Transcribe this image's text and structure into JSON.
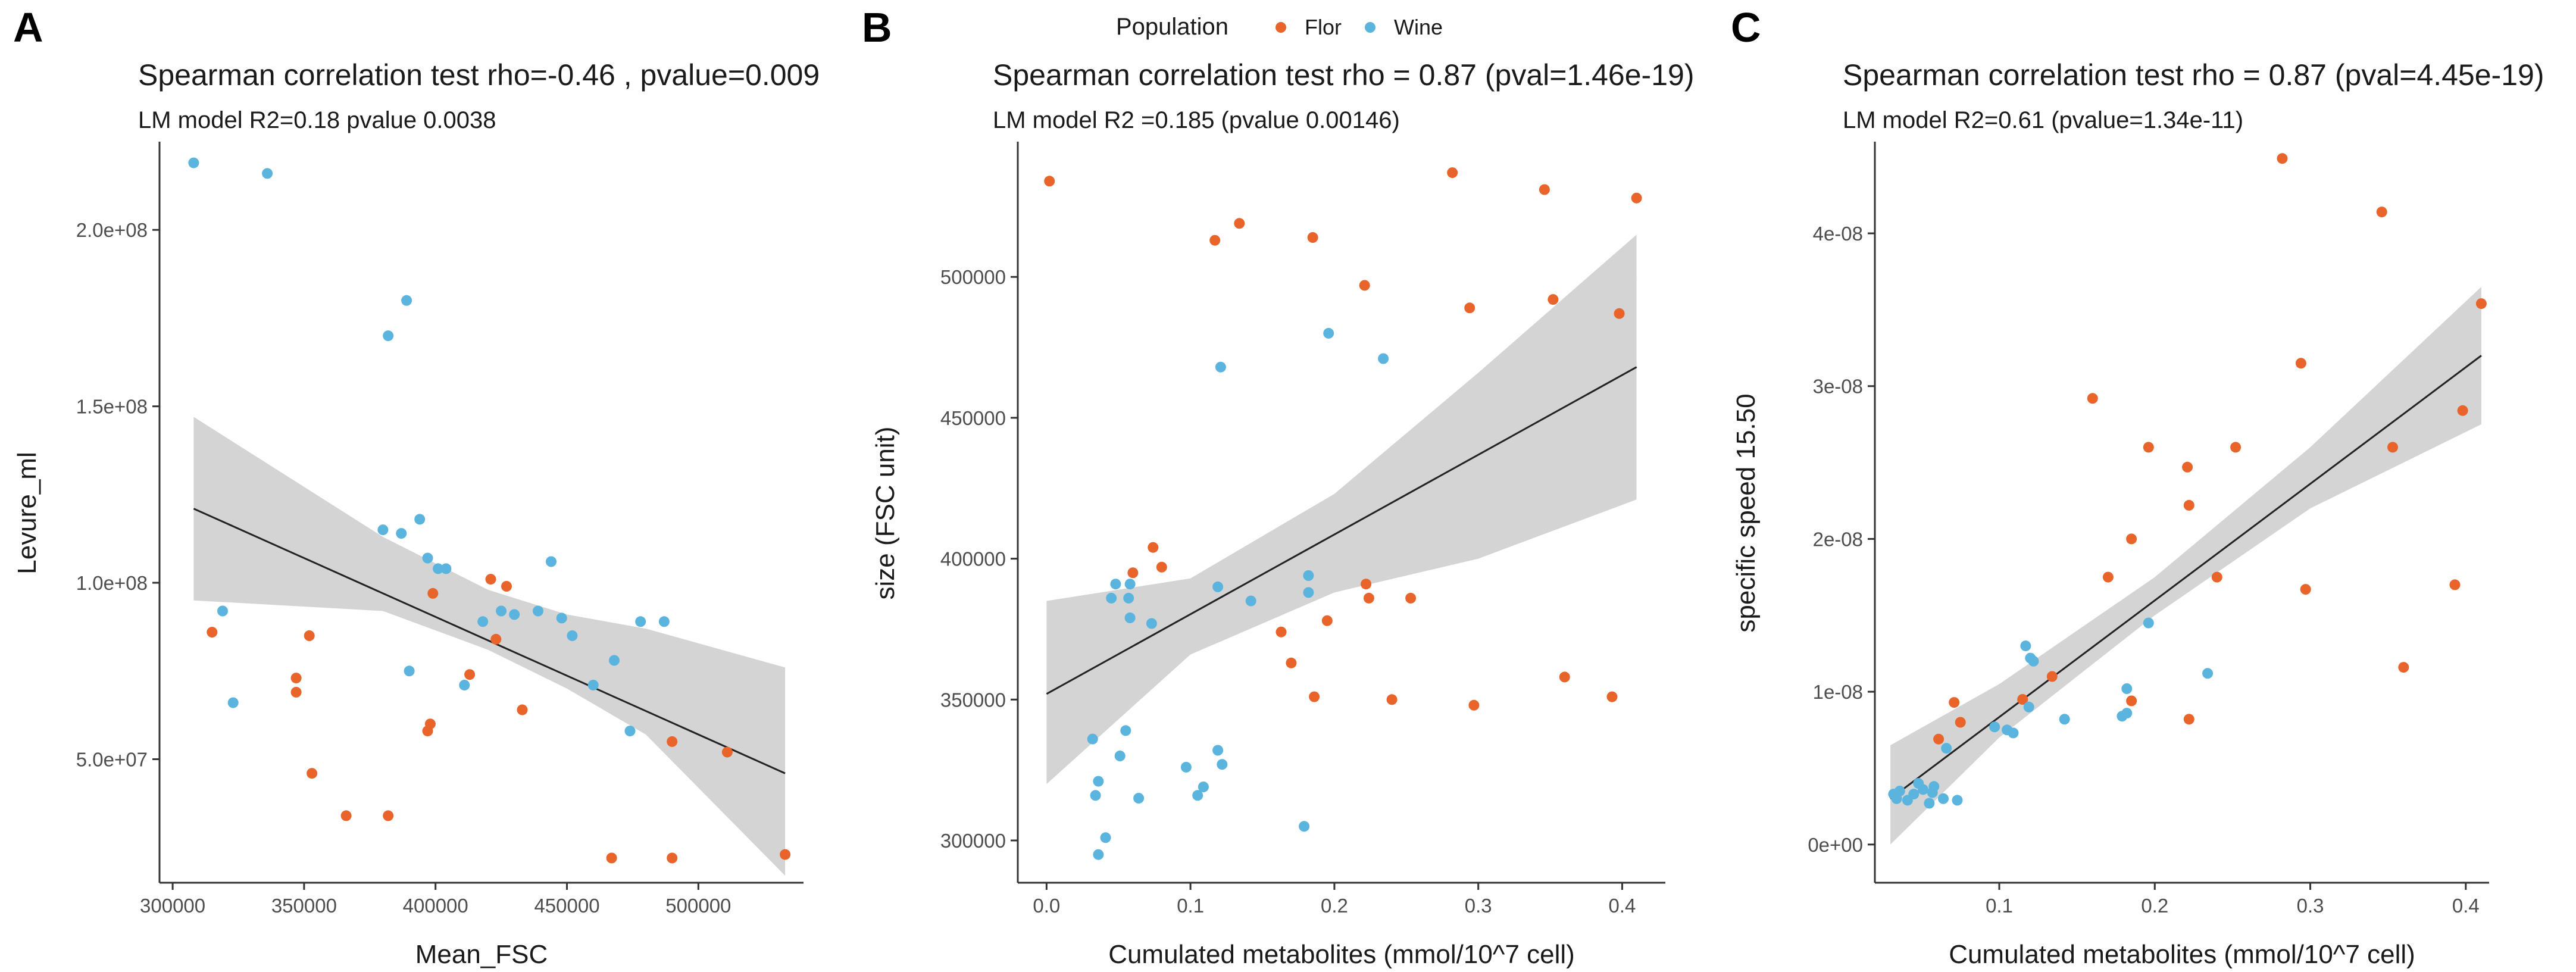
{
  "legend": {
    "title": "Population",
    "items": [
      {
        "label": "Flor",
        "color": "#E8642A"
      },
      {
        "label": "Wine",
        "color": "#5BB4DE"
      }
    ]
  },
  "chart_data": [
    {
      "type": "scatter",
      "panel": "A",
      "title": "Spearman correlation test rho=-0.46 , pvalue=0.009",
      "subtitle": "LM model R2=0.18 pvalue 0.0038",
      "xlabel": "Mean_FSC",
      "ylabel": "Levure_ml",
      "xlim": [
        295000,
        540000
      ],
      "ylim": [
        15000000,
        225000000
      ],
      "xticks": [
        300000,
        350000,
        400000,
        450000,
        500000
      ],
      "xtick_labels": [
        "300000",
        "350000",
        "400000",
        "450000",
        "500000"
      ],
      "yticks": [
        50000000,
        100000000,
        150000000,
        200000000
      ],
      "ytick_labels": [
        "5.0e+07",
        "1.0e+08",
        "1.5e+08",
        "2.0e+08"
      ],
      "fit": {
        "x": [
          308000,
          533000
        ],
        "y": [
          121000000,
          46000000
        ]
      },
      "band": {
        "x": [
          308000,
          380000,
          420000,
          450000,
          480000,
          533000
        ],
        "lower": [
          95000000,
          92000000,
          81000000,
          70000000,
          57000000,
          17000000
        ],
        "upper": [
          147000000,
          113000000,
          98000000,
          91000000,
          87000000,
          76000000
        ]
      },
      "series": [
        {
          "name": "Flor",
          "color": "#E8642A",
          "points": [
            [
              315000,
              86000000
            ],
            [
              347000,
              73000000
            ],
            [
              347000,
              69000000
            ],
            [
              352000,
              85000000
            ],
            [
              353000,
              46000000
            ],
            [
              366000,
              34000000
            ],
            [
              382000,
              34000000
            ],
            [
              397000,
              58000000
            ],
            [
              398000,
              60000000
            ],
            [
              399000,
              97000000
            ],
            [
              413000,
              74000000
            ],
            [
              421000,
              101000000
            ],
            [
              423000,
              84000000
            ],
            [
              427000,
              99000000
            ],
            [
              433000,
              64000000
            ],
            [
              467000,
              22000000
            ],
            [
              490000,
              55000000
            ],
            [
              490000,
              22000000
            ],
            [
              511000,
              52000000
            ],
            [
              533000,
              23000000
            ]
          ]
        },
        {
          "name": "Wine",
          "color": "#5BB4DE",
          "points": [
            [
              308000,
              219000000
            ],
            [
              319000,
              92000000
            ],
            [
              323000,
              66000000
            ],
            [
              336000,
              216000000
            ],
            [
              380000,
              115000000
            ],
            [
              382000,
              170000000
            ],
            [
              387000,
              114000000
            ],
            [
              389000,
              180000000
            ],
            [
              390000,
              75000000
            ],
            [
              394000,
              118000000
            ],
            [
              397000,
              107000000
            ],
            [
              401000,
              104000000
            ],
            [
              404000,
              104000000
            ],
            [
              411000,
              71000000
            ],
            [
              418000,
              89000000
            ],
            [
              425000,
              92000000
            ],
            [
              430000,
              91000000
            ],
            [
              439000,
              92000000
            ],
            [
              444000,
              106000000
            ],
            [
              448000,
              90000000
            ],
            [
              452000,
              85000000
            ],
            [
              460000,
              71000000
            ],
            [
              468000,
              78000000
            ],
            [
              474000,
              58000000
            ],
            [
              478000,
              89000000
            ],
            [
              487000,
              89000000
            ]
          ]
        }
      ]
    },
    {
      "type": "scatter",
      "panel": "B",
      "title": "Spearman correlation test rho = 0.87  (pval=1.46e-19)",
      "subtitle": "LM model R2 =0.185   (pvalue 0.00146)",
      "xlabel": "Cumulated metabolites (mmol/10^7 cell)",
      "ylabel": "size (FSC unit)",
      "xlim": [
        -0.02,
        0.43
      ],
      "ylim": [
        285000,
        548000
      ],
      "xticks": [
        0.0,
        0.1,
        0.2,
        0.3,
        0.4
      ],
      "xtick_labels": [
        "0.0",
        "0.1",
        "0.2",
        "0.3",
        "0.4"
      ],
      "yticks": [
        300000,
        350000,
        400000,
        450000,
        500000
      ],
      "ytick_labels": [
        "300000",
        "350000",
        "400000",
        "450000",
        "500000"
      ],
      "fit": {
        "x": [
          0.0,
          0.41
        ],
        "y": [
          352000,
          468000
        ]
      },
      "band": {
        "x": [
          0.0,
          0.1,
          0.2,
          0.3,
          0.41
        ],
        "lower": [
          320000,
          366000,
          388000,
          400000,
          421000
        ],
        "upper": [
          385000,
          393000,
          423000,
          466000,
          515000
        ]
      },
      "series": [
        {
          "name": "Flor",
          "color": "#E8642A",
          "points": [
            [
              0.002,
              534000
            ],
            [
              0.06,
              395000
            ],
            [
              0.074,
              404000
            ],
            [
              0.08,
              397000
            ],
            [
              0.117,
              513000
            ],
            [
              0.134,
              519000
            ],
            [
              0.163,
              374000
            ],
            [
              0.17,
              363000
            ],
            [
              0.185,
              514000
            ],
            [
              0.186,
              351000
            ],
            [
              0.195,
              378000
            ],
            [
              0.221,
              497000
            ],
            [
              0.222,
              391000
            ],
            [
              0.224,
              386000
            ],
            [
              0.24,
              350000
            ],
            [
              0.253,
              386000
            ],
            [
              0.282,
              537000
            ],
            [
              0.294,
              489000
            ],
            [
              0.297,
              348000
            ],
            [
              0.346,
              531000
            ],
            [
              0.352,
              492000
            ],
            [
              0.36,
              358000
            ],
            [
              0.393,
              351000
            ],
            [
              0.398,
              487000
            ],
            [
              0.41,
              528000
            ]
          ]
        },
        {
          "name": "Wine",
          "color": "#5BB4DE",
          "points": [
            [
              0.032,
              336000
            ],
            [
              0.034,
              316000
            ],
            [
              0.036,
              321000
            ],
            [
              0.036,
              295000
            ],
            [
              0.041,
              301000
            ],
            [
              0.045,
              386000
            ],
            [
              0.048,
              391000
            ],
            [
              0.051,
              330000
            ],
            [
              0.055,
              339000
            ],
            [
              0.057,
              386000
            ],
            [
              0.058,
              379000
            ],
            [
              0.058,
              391000
            ],
            [
              0.064,
              315000
            ],
            [
              0.073,
              377000
            ],
            [
              0.097,
              326000
            ],
            [
              0.105,
              316000
            ],
            [
              0.109,
              319000
            ],
            [
              0.119,
              332000
            ],
            [
              0.119,
              390000
            ],
            [
              0.121,
              468000
            ],
            [
              0.122,
              327000
            ],
            [
              0.142,
              385000
            ],
            [
              0.179,
              305000
            ],
            [
              0.182,
              388000
            ],
            [
              0.182,
              394000
            ],
            [
              0.196,
              480000
            ],
            [
              0.234,
              471000
            ]
          ]
        }
      ]
    },
    {
      "type": "scatter",
      "panel": "C",
      "title": "Spearman correlation test rho = 0.87  (pval=4.45e-19)",
      "subtitle": "LM model R2=0.61 (pvalue=1.34e-11)",
      "xlabel": "Cumulated metabolites (mmol/10^7 cell)",
      "ylabel": "specific speed 15.50",
      "xlim": [
        0.02,
        0.415
      ],
      "ylim": [
        -2.5e-09,
        4.6e-08
      ],
      "xticks": [
        0.1,
        0.2,
        0.3,
        0.4
      ],
      "xtick_labels": [
        "0.1",
        "0.2",
        "0.3",
        "0.4"
      ],
      "yticks": [
        0,
        1e-08,
        2e-08,
        3e-08,
        4e-08
      ],
      "ytick_labels": [
        "0e+00",
        "1e-08",
        "2e-08",
        "3e-08",
        "4e-08"
      ],
      "fit": {
        "x": [
          0.03,
          0.41
        ],
        "y": [
          3e-09,
          3.2e-08
        ]
      },
      "band": {
        "x": [
          0.03,
          0.1,
          0.2,
          0.3,
          0.41
        ],
        "lower": [
          0.0,
          7e-09,
          1.5e-08,
          2.2e-08,
          2.75e-08
        ],
        "upper": [
          6.5e-09,
          1.05e-08,
          1.75e-08,
          2.6e-08,
          3.65e-08
        ]
      },
      "series": [
        {
          "name": "Flor",
          "color": "#E8642A",
          "points": [
            [
              0.061,
              6.9e-09
            ],
            [
              0.071,
              9.3e-09
            ],
            [
              0.075,
              8e-09
            ],
            [
              0.115,
              9.5e-09
            ],
            [
              0.134,
              1.1e-08
            ],
            [
              0.16,
              2.92e-08
            ],
            [
              0.17,
              1.75e-08
            ],
            [
              0.185,
              9.4e-09
            ],
            [
              0.185,
              2e-08
            ],
            [
              0.196,
              2.6e-08
            ],
            [
              0.221,
              2.47e-08
            ],
            [
              0.222,
              2.22e-08
            ],
            [
              0.222,
              8.2e-09
            ],
            [
              0.24,
              1.75e-08
            ],
            [
              0.252,
              2.6e-08
            ],
            [
              0.282,
              4.49e-08
            ],
            [
              0.294,
              3.15e-08
            ],
            [
              0.297,
              1.67e-08
            ],
            [
              0.346,
              4.14e-08
            ],
            [
              0.353,
              2.6e-08
            ],
            [
              0.36,
              1.16e-08
            ],
            [
              0.393,
              1.7e-08
            ],
            [
              0.398,
              2.84e-08
            ],
            [
              0.41,
              3.54e-08
            ]
          ]
        },
        {
          "name": "Wine",
          "color": "#5BB4DE",
          "points": [
            [
              0.032,
              3.3e-09
            ],
            [
              0.034,
              3e-09
            ],
            [
              0.036,
              3.5e-09
            ],
            [
              0.041,
              2.9e-09
            ],
            [
              0.045,
              3.3e-09
            ],
            [
              0.048,
              4e-09
            ],
            [
              0.051,
              3.6e-09
            ],
            [
              0.055,
              2.7e-09
            ],
            [
              0.057,
              3.4e-09
            ],
            [
              0.058,
              3.8e-09
            ],
            [
              0.064,
              3e-09
            ],
            [
              0.066,
              6.3e-09
            ],
            [
              0.073,
              2.9e-09
            ],
            [
              0.097,
              7.7e-09
            ],
            [
              0.105,
              7.5e-09
            ],
            [
              0.109,
              7.3e-09
            ],
            [
              0.117,
              1.3e-08
            ],
            [
              0.119,
              9e-09
            ],
            [
              0.12,
              1.22e-08
            ],
            [
              0.122,
              1.2e-08
            ],
            [
              0.142,
              8.2e-09
            ],
            [
              0.179,
              8.4e-09
            ],
            [
              0.182,
              1.02e-08
            ],
            [
              0.182,
              8.6e-09
            ],
            [
              0.196,
              1.45e-08
            ],
            [
              0.234,
              1.12e-08
            ]
          ]
        }
      ]
    }
  ]
}
